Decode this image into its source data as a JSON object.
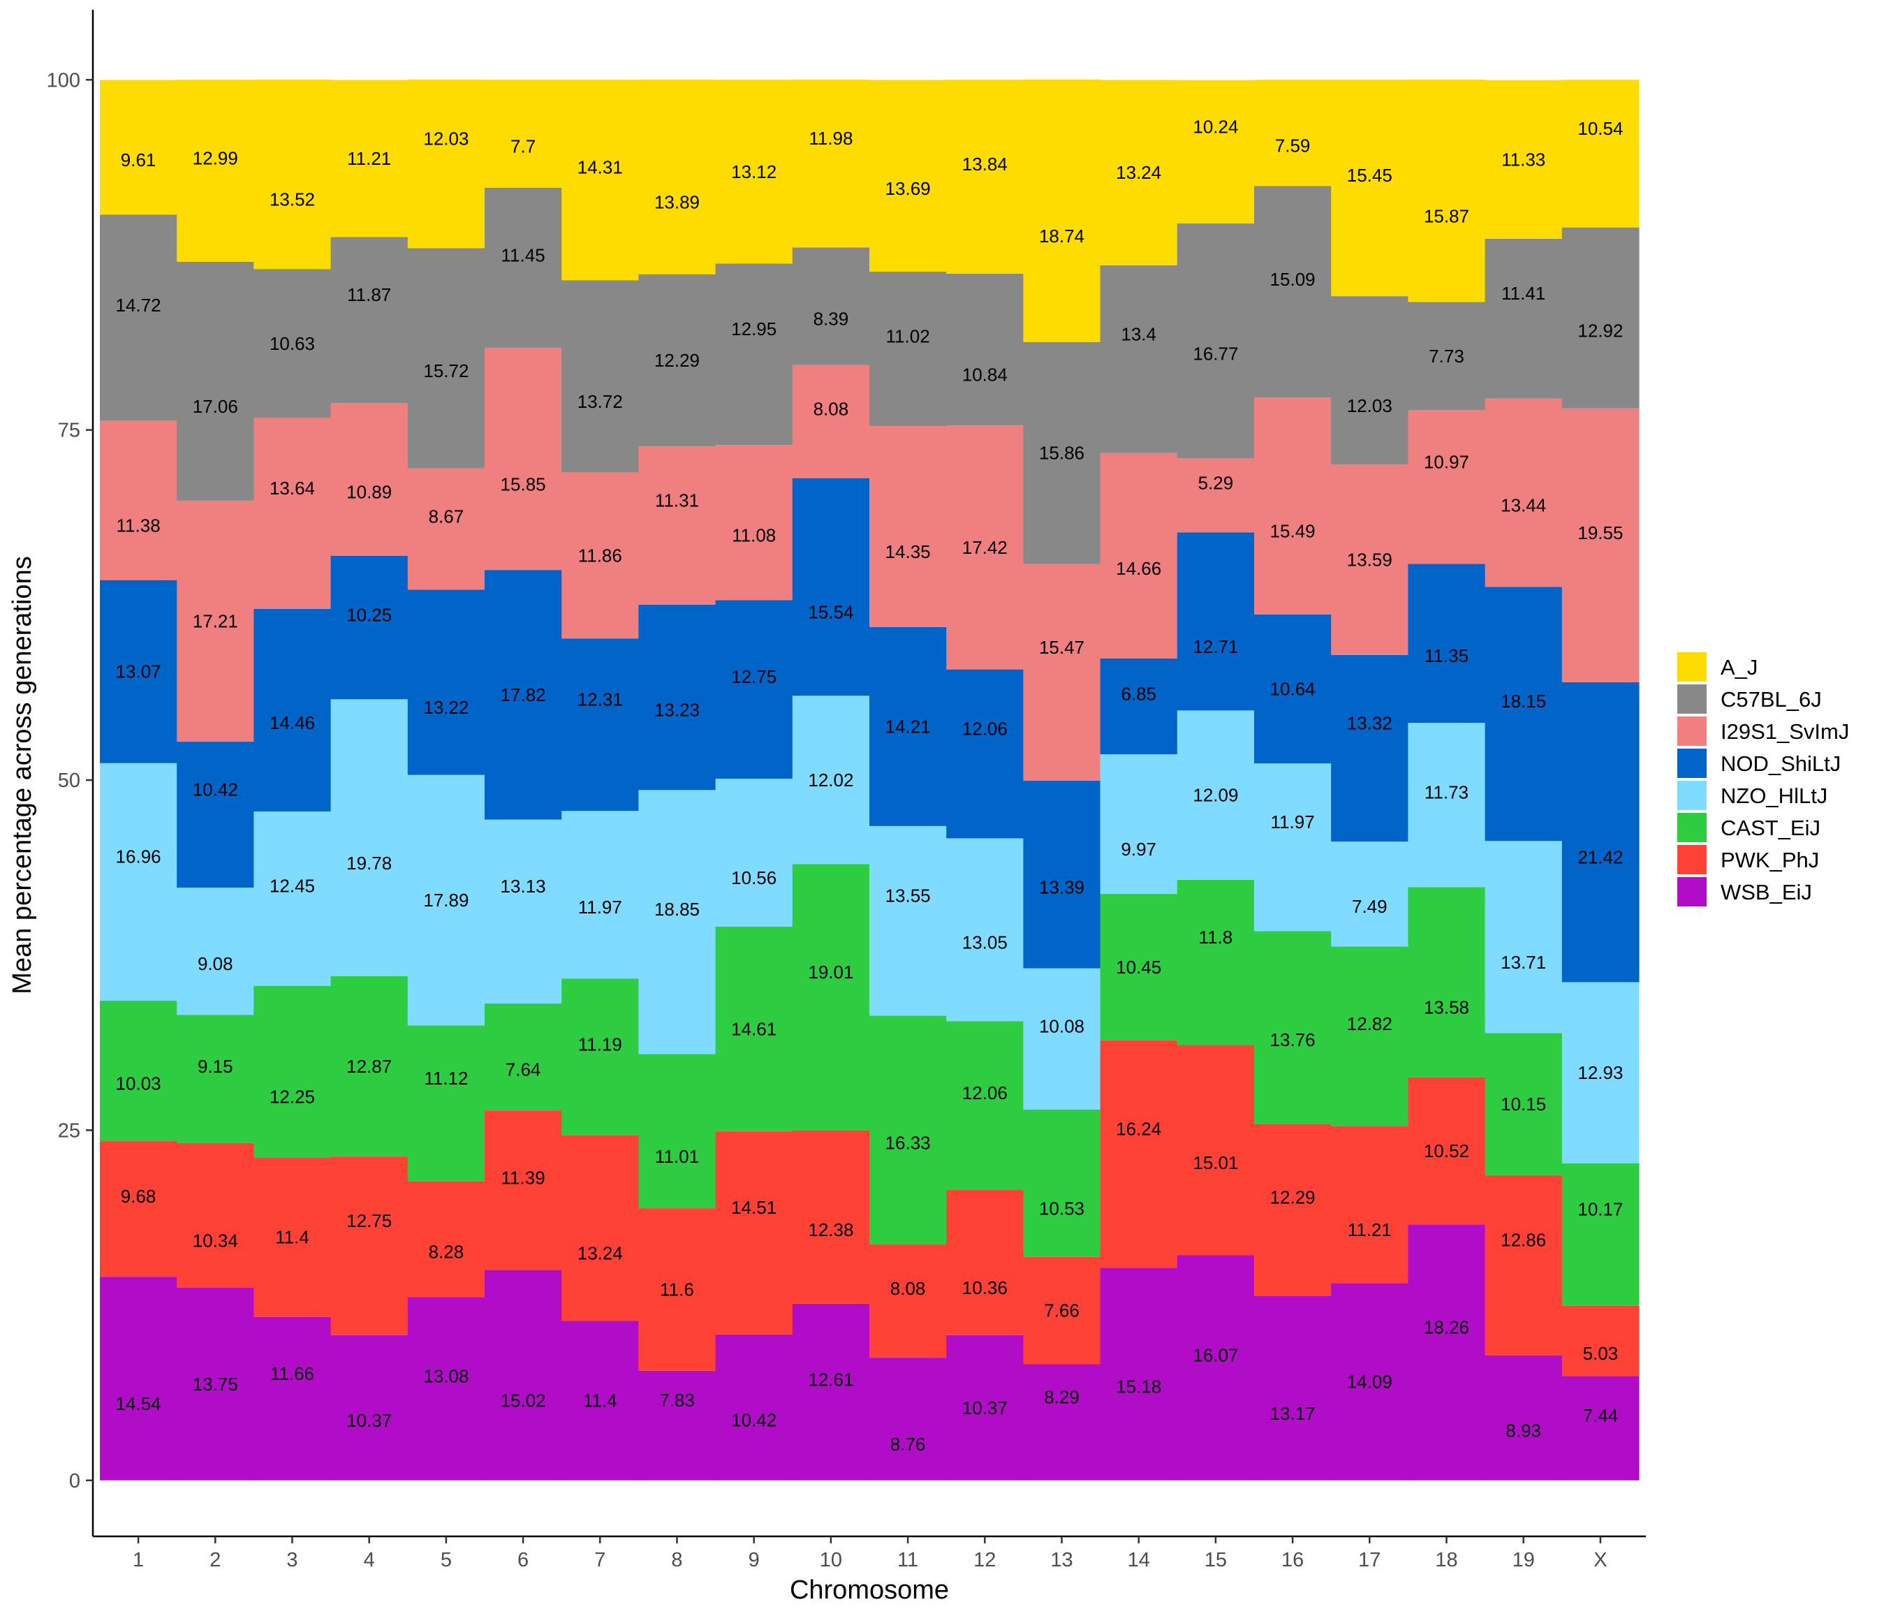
{
  "chart_data": {
    "type": "bar",
    "stacked": true,
    "xlabel": "Chromosome",
    "ylabel": "Mean percentage across generations",
    "ylim": [
      -4,
      105
    ],
    "yticks": [
      0,
      25,
      50,
      75,
      100
    ],
    "grid": false,
    "legend_position": "right",
    "categories": [
      "1",
      "2",
      "3",
      "4",
      "5",
      "6",
      "7",
      "8",
      "9",
      "10",
      "11",
      "12",
      "13",
      "14",
      "15",
      "16",
      "17",
      "18",
      "19",
      "X"
    ],
    "series": [
      {
        "name": "WSB_EiJ",
        "color": "#B10DC9",
        "values": [
          14.54,
          13.75,
          11.66,
          10.37,
          13.08,
          15.02,
          11.4,
          7.83,
          10.42,
          12.61,
          8.76,
          10.37,
          8.29,
          15.18,
          16.07,
          13.17,
          14.09,
          18.26,
          8.93,
          7.44
        ]
      },
      {
        "name": "PWK_PhJ",
        "color": "#FF4136",
        "values": [
          9.68,
          10.34,
          11.4,
          12.75,
          8.28,
          11.39,
          13.24,
          11.6,
          14.51,
          12.38,
          8.08,
          10.36,
          7.66,
          16.24,
          15.01,
          12.29,
          11.21,
          10.52,
          12.86,
          5.03
        ]
      },
      {
        "name": "CAST_EiJ",
        "color": "#2ECC40",
        "values": [
          10.03,
          9.15,
          12.25,
          12.87,
          11.12,
          7.64,
          11.19,
          11.01,
          14.61,
          19.01,
          16.33,
          12.06,
          10.53,
          10.45,
          11.8,
          13.76,
          12.82,
          13.58,
          10.15,
          10.17
        ]
      },
      {
        "name": "NZO_HlLtJ",
        "color": "#7FDBFF",
        "values": [
          16.96,
          9.08,
          12.45,
          19.78,
          17.89,
          13.13,
          11.97,
          18.85,
          10.56,
          12.02,
          13.55,
          13.05,
          10.08,
          9.97,
          12.09,
          11.97,
          7.49,
          11.73,
          13.71,
          12.93
        ]
      },
      {
        "name": "NOD_ShiLtJ",
        "color": "#0064C9",
        "values": [
          13.07,
          10.42,
          14.46,
          10.25,
          13.22,
          17.82,
          12.31,
          13.23,
          12.75,
          15.54,
          14.21,
          12.06,
          13.39,
          6.85,
          12.71,
          10.64,
          13.32,
          11.35,
          18.15,
          21.42
        ]
      },
      {
        "name": "I29S1_SvImJ",
        "color": "#F08080",
        "values": [
          11.38,
          17.21,
          13.64,
          10.89,
          8.67,
          15.85,
          11.86,
          11.31,
          11.08,
          8.08,
          14.35,
          17.42,
          15.47,
          14.66,
          5.29,
          15.49,
          13.59,
          10.97,
          13.44,
          19.55
        ]
      },
      {
        "name": "C57BL_6J",
        "color": "#888888",
        "values": [
          14.72,
          17.06,
          10.63,
          11.87,
          15.72,
          11.45,
          13.72,
          12.29,
          12.95,
          8.39,
          11.02,
          10.84,
          15.86,
          13.4,
          16.77,
          15.09,
          12.03,
          7.73,
          11.41,
          12.92
        ]
      },
      {
        "name": "A_J",
        "color": "#FFDC00",
        "values": [
          9.61,
          12.99,
          13.52,
          11.21,
          12.03,
          7.7,
          14.31,
          13.89,
          13.12,
          11.98,
          13.69,
          13.84,
          18.74,
          13.24,
          10.24,
          7.59,
          15.45,
          15.87,
          11.33,
          10.54
        ]
      }
    ]
  }
}
